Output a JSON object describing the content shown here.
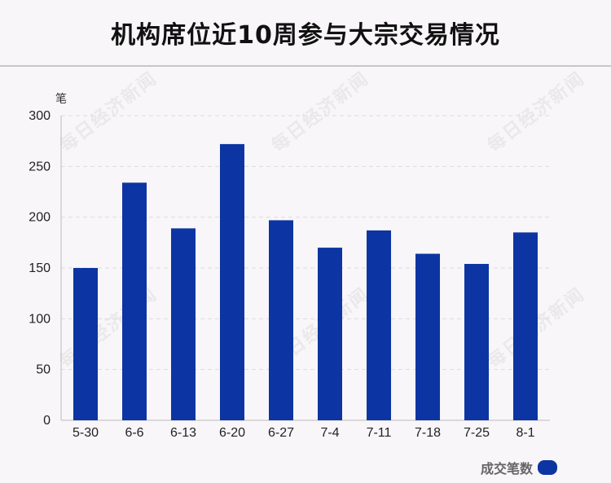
{
  "title": "机构席位近10周参与大宗交易情况",
  "watermark": "每日经济新闻",
  "unit_label": "笔",
  "legend": {
    "label": "成交笔数",
    "color": "#0c35a3"
  },
  "chart_data": {
    "type": "bar",
    "categories": [
      "5-30",
      "6-6",
      "6-13",
      "6-20",
      "6-27",
      "7-4",
      "7-11",
      "7-18",
      "7-25",
      "8-1"
    ],
    "series": [
      {
        "name": "成交笔数",
        "values": [
          150,
          234,
          189,
          272,
          197,
          170,
          187,
          164,
          154,
          185
        ]
      }
    ],
    "yticks": [
      0,
      50,
      100,
      150,
      200,
      250,
      300
    ],
    "ylim": [
      0,
      300
    ],
    "grid": true,
    "legend_position": "bottom-right",
    "bar_color": "#0c35a3"
  }
}
